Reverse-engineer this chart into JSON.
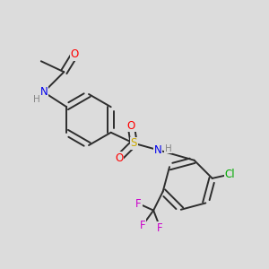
{
  "background_color": "#dcdcdc",
  "bond_color": "#2d2d2d",
  "atom_colors": {
    "O": "#ff0000",
    "N": "#0000ee",
    "S": "#ccaa00",
    "Cl": "#00aa00",
    "F": "#cc00cc",
    "H": "#888888",
    "C": "#2d2d2d"
  },
  "font_size": 8.5,
  "bond_width": 1.4
}
